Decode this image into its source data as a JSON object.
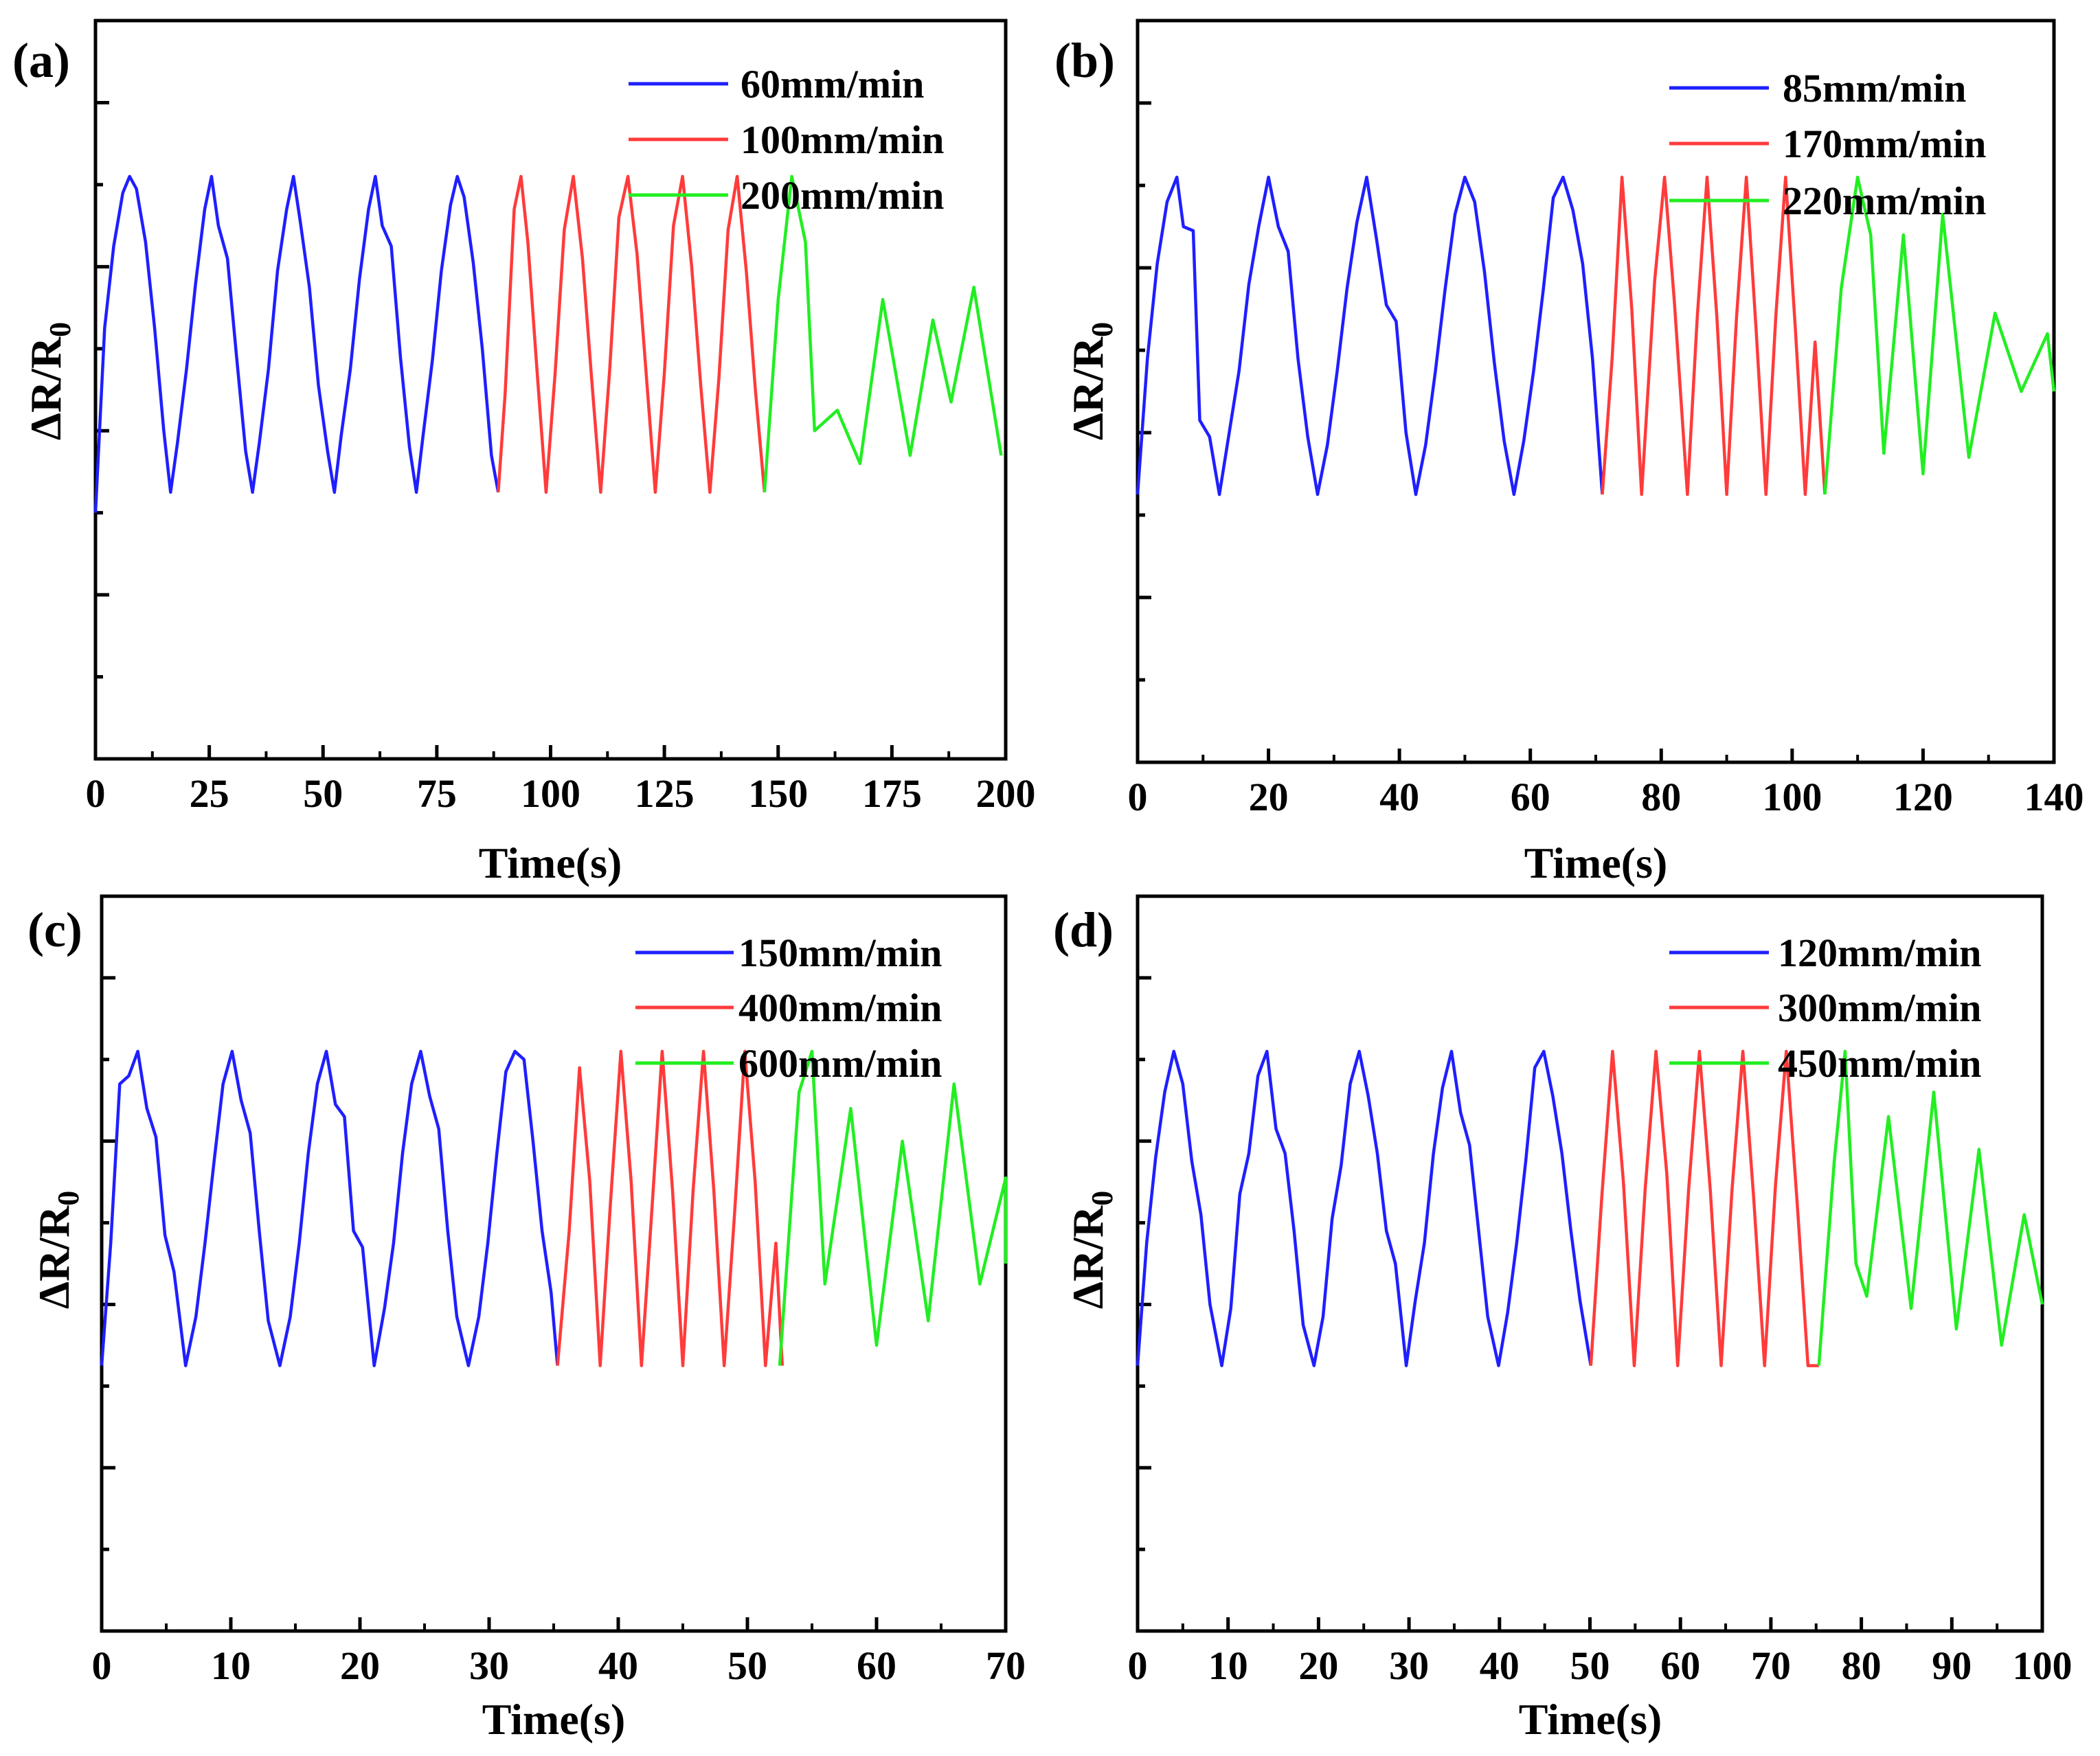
{
  "chart_data": [
    {
      "panel_label": "(a)",
      "type": "line",
      "xlabel": "Time(s)",
      "ylabel_main": "ΔR/R",
      "ylabel_sub": "0",
      "xlim": [
        0,
        200
      ],
      "ylim": [
        -0.6,
        1.2
      ],
      "xticks": [
        "0",
        "25",
        "50",
        "75",
        "100",
        "125",
        "150",
        "175",
        "200"
      ],
      "legend_position": "top-right",
      "series": [
        {
          "name": "60mm/min",
          "color": "#1f1fff",
          "x": [
            0,
            2,
            4,
            6,
            7.5,
            9,
            11,
            13,
            15,
            16.5,
            18,
            20,
            22,
            24,
            25.5,
            27,
            29,
            31,
            33,
            34.5,
            36,
            38,
            40,
            42,
            43.5,
            45,
            47,
            49,
            51,
            52.5,
            54,
            56,
            58,
            60,
            61.5,
            63,
            65,
            67,
            69,
            70.5,
            72,
            74,
            76,
            78,
            79.5,
            81,
            83,
            85,
            87,
            88.5
          ],
          "y": [
            0,
            0.45,
            0.65,
            0.78,
            0.82,
            0.79,
            0.66,
            0.45,
            0.2,
            0.05,
            0.17,
            0.35,
            0.56,
            0.74,
            0.82,
            0.7,
            0.62,
            0.38,
            0.15,
            0.05,
            0.17,
            0.35,
            0.59,
            0.74,
            0.82,
            0.71,
            0.55,
            0.31,
            0.15,
            0.05,
            0.19,
            0.35,
            0.57,
            0.74,
            0.82,
            0.7,
            0.65,
            0.38,
            0.16,
            0.05,
            0.19,
            0.37,
            0.59,
            0.75,
            0.82,
            0.77,
            0.61,
            0.4,
            0.14,
            0.05
          ]
        },
        {
          "name": "100mm/min",
          "color": "#ff3b3b",
          "x": [
            88.5,
            90,
            92,
            93.5,
            95,
            97,
            99,
            101,
            103,
            105,
            107,
            109,
            111,
            113,
            115,
            117,
            119,
            121,
            123,
            125,
            127,
            129,
            131,
            133,
            135,
            137,
            139,
            141,
            143,
            145,
            147
          ],
          "y": [
            0.05,
            0.29,
            0.74,
            0.82,
            0.66,
            0.35,
            0.05,
            0.34,
            0.69,
            0.82,
            0.62,
            0.33,
            0.05,
            0.35,
            0.72,
            0.82,
            0.63,
            0.34,
            0.05,
            0.34,
            0.7,
            0.82,
            0.6,
            0.31,
            0.05,
            0.33,
            0.69,
            0.82,
            0.59,
            0.3,
            0.05
          ]
        },
        {
          "name": "200mm/min",
          "color": "#22ee22",
          "x": [
            147,
            150,
            153,
            156,
            158,
            163,
            168,
            173,
            179,
            184,
            188,
            193,
            199
          ],
          "y": [
            0.05,
            0.52,
            0.82,
            0.66,
            0.2,
            0.25,
            0.12,
            0.52,
            0.14,
            0.47,
            0.27,
            0.55,
            0.14
          ]
        }
      ]
    },
    {
      "panel_label": "(b)",
      "type": "line",
      "xlabel": "Time(s)",
      "ylabel_main": "ΔR/R",
      "ylabel_sub": "0",
      "xlim": [
        0,
        140
      ],
      "ylim": [
        -0.6,
        1.2
      ],
      "xticks": [
        "0",
        "20",
        "40",
        "60",
        "80",
        "100",
        "120",
        "140"
      ],
      "legend_position": "top-right",
      "series": [
        {
          "name": "85mm/min",
          "color": "#1f1fff",
          "x": [
            0,
            1.5,
            3,
            4.5,
            6,
            7,
            8.5,
            9.5,
            11,
            12.5,
            14,
            15.5,
            17,
            18.5,
            20,
            21.5,
            23,
            24.5,
            26,
            27.5,
            29,
            30.5,
            32,
            33.5,
            35,
            36.5,
            38,
            39.5,
            41,
            42.5,
            44,
            45.5,
            47,
            48.5,
            50,
            51.5,
            53,
            54.5,
            56,
            57.5,
            59,
            60.5,
            62,
            63.5,
            65,
            66.5,
            68,
            69.5,
            71
          ],
          "y": [
            0.05,
            0.38,
            0.61,
            0.76,
            0.82,
            0.7,
            0.69,
            0.23,
            0.19,
            0.05,
            0.2,
            0.35,
            0.56,
            0.7,
            0.82,
            0.7,
            0.64,
            0.38,
            0.19,
            0.05,
            0.17,
            0.35,
            0.55,
            0.71,
            0.82,
            0.67,
            0.51,
            0.47,
            0.2,
            0.05,
            0.17,
            0.35,
            0.55,
            0.73,
            0.82,
            0.76,
            0.59,
            0.37,
            0.18,
            0.05,
            0.18,
            0.35,
            0.55,
            0.77,
            0.82,
            0.74,
            0.61,
            0.38,
            0.05
          ]
        },
        {
          "name": "170mm/min",
          "color": "#ff3b3b",
          "x": [
            71,
            72.5,
            74,
            75.5,
            77,
            79,
            80.5,
            82,
            84,
            85.5,
            87,
            88.5,
            90,
            91.5,
            93,
            94.5,
            96,
            97.5,
            99,
            100.5,
            102,
            103.5,
            105
          ],
          "y": [
            0.05,
            0.38,
            0.82,
            0.5,
            0.05,
            0.57,
            0.82,
            0.52,
            0.05,
            0.48,
            0.82,
            0.48,
            0.05,
            0.48,
            0.82,
            0.45,
            0.05,
            0.48,
            0.82,
            0.45,
            0.05,
            0.42,
            0.05
          ]
        },
        {
          "name": "220mm/min",
          "color": "#22ee22",
          "x": [
            105,
            107.5,
            110,
            112,
            114,
            117,
            120,
            123,
            127,
            131,
            135,
            139,
            141
          ],
          "y": [
            0.05,
            0.55,
            0.82,
            0.68,
            0.15,
            0.68,
            0.1,
            0.73,
            0.14,
            0.49,
            0.3,
            0.44,
            0.3
          ]
        }
      ]
    },
    {
      "panel_label": "(c)",
      "type": "line",
      "xlabel": "Time(s)",
      "ylabel_main": "ΔR/R",
      "ylabel_sub": "0",
      "xlim": [
        0,
        70
      ],
      "ylim": [
        -0.6,
        1.2
      ],
      "xticks": [
        "0",
        "10",
        "20",
        "30",
        "40",
        "50",
        "60",
        "70"
      ],
      "legend_position": "top-right",
      "series": [
        {
          "name": "150mm/min",
          "color": "#1f1fff",
          "x": [
            0,
            0.7,
            1.4,
            2.1,
            2.8,
            3.5,
            4.2,
            4.9,
            5.6,
            6.5,
            7.3,
            8,
            8.7,
            9.4,
            10.1,
            10.8,
            11.5,
            12.2,
            12.9,
            13.8,
            14.6,
            15.3,
            16,
            16.7,
            17.4,
            18.1,
            18.8,
            19.5,
            20.2,
            21.1,
            21.9,
            22.6,
            23.3,
            24,
            24.7,
            25.4,
            26.1,
            26.8,
            27.5,
            28.4,
            29.2,
            29.9,
            30.6,
            31.3,
            32,
            32.7,
            33.4,
            34.1,
            34.8,
            35.3
          ],
          "y": [
            0.05,
            0.35,
            0.74,
            0.76,
            0.82,
            0.68,
            0.61,
            0.37,
            0.28,
            0.05,
            0.17,
            0.35,
            0.55,
            0.74,
            0.82,
            0.7,
            0.62,
            0.38,
            0.16,
            0.05,
            0.17,
            0.35,
            0.57,
            0.74,
            0.82,
            0.69,
            0.66,
            0.38,
            0.34,
            0.05,
            0.19,
            0.35,
            0.57,
            0.74,
            0.82,
            0.71,
            0.63,
            0.38,
            0.17,
            0.05,
            0.17,
            0.35,
            0.57,
            0.77,
            0.82,
            0.8,
            0.6,
            0.38,
            0.23,
            0.05
          ]
        },
        {
          "name": "400mm/min",
          "color": "#ff3b3b",
          "x": [
            35.3,
            36.2,
            37,
            37.8,
            38.6,
            39.4,
            40.2,
            41,
            41.8,
            42.6,
            43.4,
            44.2,
            45,
            45.8,
            46.6,
            47.4,
            48.2,
            49,
            49.8,
            50.6,
            51.4,
            52.2,
            52.7
          ],
          "y": [
            0.05,
            0.38,
            0.78,
            0.5,
            0.05,
            0.45,
            0.82,
            0.5,
            0.05,
            0.43,
            0.82,
            0.48,
            0.05,
            0.48,
            0.82,
            0.48,
            0.05,
            0.42,
            0.82,
            0.5,
            0.05,
            0.35,
            0.05
          ]
        },
        {
          "name": "600mm/min",
          "color": "#22ee22",
          "x": [
            52.5,
            54,
            55,
            56,
            58,
            60,
            62,
            64,
            66,
            68,
            70,
            71
          ],
          "y": [
            0.05,
            0.72,
            0.82,
            0.25,
            0.68,
            0.1,
            0.6,
            0.16,
            0.74,
            0.25,
            0.51,
            0.3
          ]
        }
      ]
    },
    {
      "panel_label": "(d)",
      "type": "line",
      "xlabel": "Time(s)",
      "ylabel_main": "ΔR/R",
      "ylabel_sub": "0",
      "xlim": [
        0,
        100
      ],
      "ylim": [
        -0.6,
        1.2
      ],
      "xticks": [
        "0",
        "10",
        "20",
        "30",
        "40",
        "50",
        "60",
        "70",
        "80",
        "90",
        "100"
      ],
      "legend_position": "top-right",
      "series": [
        {
          "name": "120mm/min",
          "color": "#1f1fff",
          "x": [
            0,
            1,
            2,
            3,
            4,
            5,
            6,
            7,
            8,
            9.3,
            10.3,
            11.3,
            12.3,
            13.3,
            14.3,
            15.3,
            16.3,
            17.3,
            18.3,
            19.5,
            20.5,
            21.5,
            22.5,
            23.5,
            24.5,
            25.5,
            26.5,
            27.5,
            28.5,
            29.7,
            30.7,
            31.7,
            32.7,
            33.7,
            34.7,
            35.7,
            36.7,
            37.7,
            38.7,
            39.9,
            40.9,
            41.9,
            42.9,
            43.9,
            44.9,
            45.9,
            46.9,
            47.9,
            48.9,
            50.1
          ],
          "y": [
            0.05,
            0.35,
            0.56,
            0.72,
            0.82,
            0.74,
            0.55,
            0.42,
            0.2,
            0.05,
            0.19,
            0.47,
            0.57,
            0.76,
            0.82,
            0.63,
            0.57,
            0.38,
            0.15,
            0.05,
            0.17,
            0.41,
            0.54,
            0.74,
            0.82,
            0.71,
            0.57,
            0.38,
            0.3,
            0.05,
            0.21,
            0.35,
            0.57,
            0.73,
            0.82,
            0.67,
            0.59,
            0.38,
            0.17,
            0.05,
            0.18,
            0.35,
            0.55,
            0.78,
            0.82,
            0.71,
            0.57,
            0.38,
            0.21,
            0.05
          ]
        },
        {
          "name": "300mm/min",
          "color": "#ff3b3b",
          "x": [
            50.1,
            51.3,
            52.5,
            53.7,
            54.9,
            56.1,
            57.3,
            58.5,
            59.7,
            60.9,
            62.1,
            63.3,
            64.5,
            65.7,
            66.9,
            68.1,
            69.3,
            70.5,
            71.7,
            72.9,
            74.1,
            75.3
          ],
          "y": [
            0.05,
            0.46,
            0.82,
            0.5,
            0.05,
            0.48,
            0.82,
            0.52,
            0.05,
            0.48,
            0.82,
            0.48,
            0.05,
            0.48,
            0.82,
            0.46,
            0.05,
            0.49,
            0.82,
            0.45,
            0.05,
            0.05
          ]
        },
        {
          "name": "450mm/min",
          "color": "#22ee22",
          "x": [
            75.3,
            77,
            78.2,
            79.4,
            80.6,
            83,
            85.5,
            88,
            90.5,
            93,
            95.5,
            98,
            100
          ],
          "y": [
            0.05,
            0.55,
            0.82,
            0.3,
            0.22,
            0.66,
            0.19,
            0.72,
            0.14,
            0.58,
            0.1,
            0.42,
            0.2
          ]
        }
      ]
    }
  ]
}
